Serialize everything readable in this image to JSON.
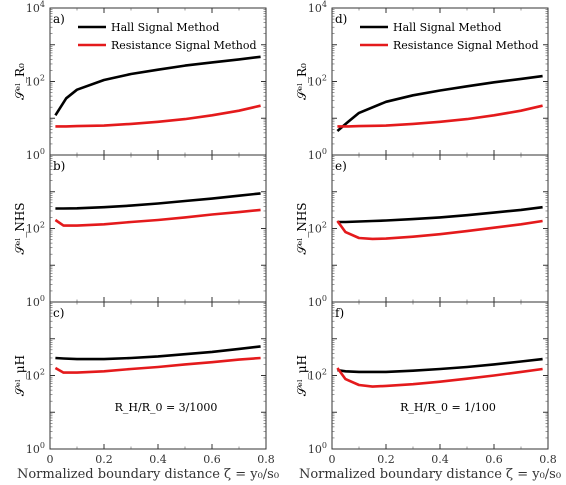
{
  "chart_data": [
    {
      "type": "line",
      "panel": "a)",
      "ylabel": "S^el_{R0}",
      "yscale": "log",
      "ylim": [
        1,
        10000
      ],
      "x": [
        0.02,
        0.06,
        0.1,
        0.2,
        0.3,
        0.4,
        0.5,
        0.6,
        0.7,
        0.78
      ],
      "series": [
        {
          "name": "Hall Signal Method",
          "color": "#000000",
          "values": [
            12,
            35,
            60,
            110,
            160,
            210,
            270,
            330,
            400,
            470
          ]
        },
        {
          "name": "Resistance Signal Method",
          "color": "#e41a1c",
          "values": [
            6,
            6,
            6.1,
            6.3,
            7,
            8,
            9.5,
            12,
            16,
            22
          ]
        }
      ],
      "legend": "top-left",
      "xlim": [
        0,
        0.8
      ],
      "yticks": [
        "10^0",
        "10^2",
        "10^4"
      ]
    },
    {
      "type": "line",
      "panel": "b)",
      "ylabel": "S^el_{NHS}",
      "yscale": "log",
      "ylim": [
        1,
        10000
      ],
      "x": [
        0.02,
        0.05,
        0.1,
        0.2,
        0.3,
        0.4,
        0.5,
        0.6,
        0.7,
        0.78
      ],
      "series": [
        {
          "name": "Hall Signal Method",
          "color": "#000000",
          "values": [
            350,
            350,
            355,
            380,
            420,
            480,
            560,
            650,
            780,
            900
          ]
        },
        {
          "name": "Resistance Signal Method",
          "color": "#e41a1c",
          "values": [
            170,
            120,
            120,
            130,
            150,
            170,
            200,
            240,
            280,
            320
          ]
        }
      ],
      "xlim": [
        0,
        0.8
      ],
      "yticks": [
        "10^0",
        "10^2"
      ]
    },
    {
      "type": "line",
      "panel": "c)",
      "ylabel": "S^el_{μH}",
      "yscale": "log",
      "ylim": [
        1,
        10000
      ],
      "x": [
        0.02,
        0.05,
        0.1,
        0.2,
        0.3,
        0.4,
        0.5,
        0.6,
        0.7,
        0.78
      ],
      "series": [
        {
          "name": "Hall Signal Method",
          "color": "#000000",
          "values": [
            300,
            290,
            280,
            280,
            300,
            330,
            380,
            440,
            530,
            620
          ]
        },
        {
          "name": "Resistance Signal Method",
          "color": "#e41a1c",
          "values": [
            160,
            120,
            120,
            130,
            150,
            170,
            200,
            230,
            270,
            300
          ]
        }
      ],
      "annotation": "R_H/R_0 = 3/1000",
      "xlim": [
        0,
        0.8
      ],
      "yticks": [
        "10^0",
        "10^2"
      ]
    },
    {
      "type": "line",
      "panel": "d)",
      "ylabel": "S^el_{R0}",
      "yscale": "log",
      "ylim": [
        1,
        10000
      ],
      "x": [
        0.02,
        0.04,
        0.06,
        0.1,
        0.2,
        0.3,
        0.4,
        0.5,
        0.6,
        0.7,
        0.78
      ],
      "series": [
        {
          "name": "Hall Signal Method",
          "color": "#000000",
          "values": [
            4.5,
            6,
            8,
            14,
            28,
            42,
            57,
            74,
            95,
            118,
            140
          ]
        },
        {
          "name": "Resistance Signal Method",
          "color": "#e41a1c",
          "values": [
            6,
            6,
            6,
            6.1,
            6.3,
            7,
            8,
            9.5,
            12,
            16,
            22
          ]
        }
      ],
      "legend": "top-left",
      "xlim": [
        0,
        0.8
      ],
      "yticks": [
        "10^0",
        "10^2",
        "10^4"
      ]
    },
    {
      "type": "line",
      "panel": "e)",
      "ylabel": "S^el_{NHS}",
      "yscale": "log",
      "ylim": [
        1,
        10000
      ],
      "x": [
        0.02,
        0.05,
        0.1,
        0.15,
        0.2,
        0.3,
        0.4,
        0.5,
        0.6,
        0.7,
        0.78
      ],
      "series": [
        {
          "name": "Hall Signal Method",
          "color": "#000000",
          "values": [
            150,
            150,
            155,
            160,
            165,
            180,
            200,
            230,
            270,
            320,
            380
          ]
        },
        {
          "name": "Resistance Signal Method",
          "color": "#e41a1c",
          "values": [
            160,
            80,
            55,
            52,
            53,
            60,
            70,
            85,
            105,
            130,
            160
          ]
        }
      ],
      "xlim": [
        0,
        0.8
      ],
      "yticks": [
        "10^0",
        "10^2"
      ]
    },
    {
      "type": "line",
      "panel": "f)",
      "ylabel": "S^el_{μH}",
      "yscale": "log",
      "ylim": [
        1,
        10000
      ],
      "x": [
        0.02,
        0.05,
        0.1,
        0.15,
        0.2,
        0.3,
        0.4,
        0.5,
        0.6,
        0.7,
        0.78
      ],
      "series": [
        {
          "name": "Hall Signal Method",
          "color": "#000000",
          "values": [
            140,
            130,
            125,
            125,
            125,
            135,
            150,
            170,
            200,
            240,
            280
          ]
        },
        {
          "name": "Resistance Signal Method",
          "color": "#e41a1c",
          "values": [
            160,
            80,
            55,
            50,
            52,
            58,
            68,
            82,
            100,
            125,
            150
          ]
        }
      ],
      "annotation": "R_H/R_0 = 1/100",
      "xlim": [
        0,
        0.8
      ],
      "yticks": [
        "10^0",
        "10^2"
      ]
    }
  ],
  "text": {
    "xlabel": "Normalized boundary distance ζ = y₀/s₀",
    "xticks": [
      "0",
      "0.2",
      "0.4",
      "0.6",
      "0.8"
    ],
    "legend_hall": "Hall Signal Method",
    "legend_res": "Resistance Signal Method",
    "ylabels": [
      "𝒮ᵉˡ_R₀",
      "𝒮ᵉˡ_NHS",
      "𝒮ᵉˡ_μH"
    ],
    "annot_left": "R_H/R_0 = 3/1000",
    "annot_right": "R_H/R_0 = 1/100"
  }
}
